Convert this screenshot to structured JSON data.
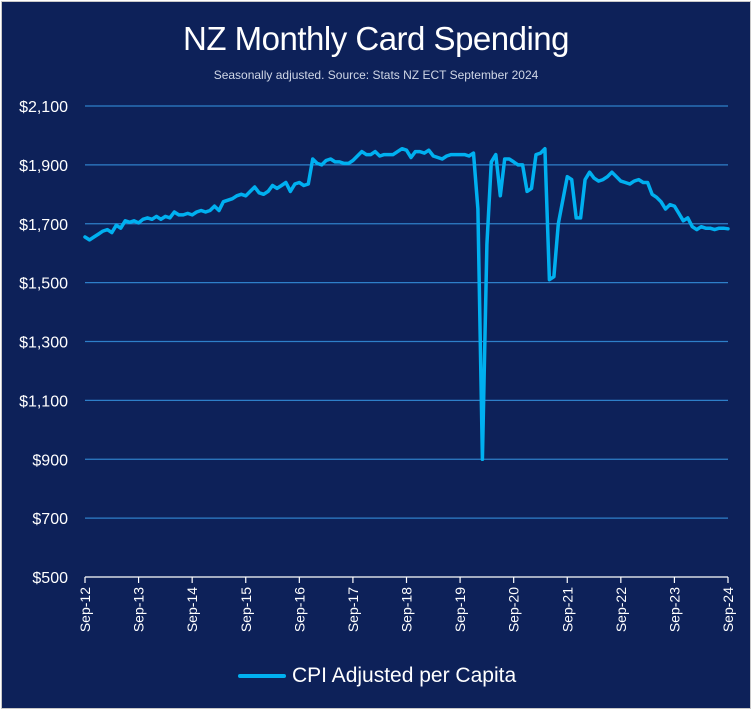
{
  "chart_data": {
    "type": "line",
    "title": "NZ Monthly Card Spending",
    "subtitle": "Seasonally adjusted. Source: Stats NZ ECT September 2024",
    "xlabel": "",
    "ylabel": "",
    "ylim": [
      500,
      2100
    ],
    "y_ticks": [
      "$500",
      "$700",
      "$900",
      "$1,100",
      "$1,300",
      "$1,500",
      "$1,700",
      "$1,900",
      "$2,100"
    ],
    "y_tick_values": [
      500,
      700,
      900,
      1100,
      1300,
      1500,
      1700,
      1900,
      2100
    ],
    "x_ticks": [
      "Sep-12",
      "Sep-13",
      "Sep-14",
      "Sep-15",
      "Sep-16",
      "Sep-17",
      "Sep-18",
      "Sep-19",
      "Sep-20",
      "Sep-21",
      "Sep-22",
      "Sep-23",
      "Sep-24"
    ],
    "grid": "horizontal",
    "legend_position": "bottom",
    "line_color": "#00b0f0",
    "series": [
      {
        "name": "CPI Adjusted per Capita",
        "x": [
          "Sep-12",
          "Oct-12",
          "Nov-12",
          "Dec-12",
          "Jan-13",
          "Feb-13",
          "Mar-13",
          "Apr-13",
          "May-13",
          "Jun-13",
          "Jul-13",
          "Aug-13",
          "Sep-13",
          "Oct-13",
          "Nov-13",
          "Dec-13",
          "Jan-14",
          "Feb-14",
          "Mar-14",
          "Apr-14",
          "May-14",
          "Jun-14",
          "Jul-14",
          "Aug-14",
          "Sep-14",
          "Oct-14",
          "Nov-14",
          "Dec-14",
          "Jan-15",
          "Feb-15",
          "Mar-15",
          "Apr-15",
          "May-15",
          "Jun-15",
          "Jul-15",
          "Aug-15",
          "Sep-15",
          "Oct-15",
          "Nov-15",
          "Dec-15",
          "Jan-16",
          "Feb-16",
          "Mar-16",
          "Apr-16",
          "May-16",
          "Jun-16",
          "Jul-16",
          "Aug-16",
          "Sep-16",
          "Oct-16",
          "Nov-16",
          "Dec-16",
          "Jan-17",
          "Feb-17",
          "Mar-17",
          "Apr-17",
          "May-17",
          "Jun-17",
          "Jul-17",
          "Aug-17",
          "Sep-17",
          "Oct-17",
          "Nov-17",
          "Dec-17",
          "Jan-18",
          "Feb-18",
          "Mar-18",
          "Apr-18",
          "May-18",
          "Jun-18",
          "Jul-18",
          "Aug-18",
          "Sep-18",
          "Oct-18",
          "Nov-18",
          "Dec-18",
          "Jan-19",
          "Feb-19",
          "Mar-19",
          "Apr-19",
          "May-19",
          "Jun-19",
          "Jul-19",
          "Aug-19",
          "Sep-19",
          "Oct-19",
          "Nov-19",
          "Dec-19",
          "Jan-20",
          "Feb-20",
          "Mar-20",
          "Apr-20",
          "May-20",
          "Jun-20",
          "Jul-20",
          "Aug-20",
          "Sep-20",
          "Oct-20",
          "Nov-20",
          "Dec-20",
          "Jan-21",
          "Feb-21",
          "Mar-21",
          "Apr-21",
          "May-21",
          "Jun-21",
          "Jul-21",
          "Aug-21",
          "Sep-21",
          "Oct-21",
          "Nov-21",
          "Dec-21",
          "Jan-22",
          "Feb-22",
          "Mar-22",
          "Apr-22",
          "May-22",
          "Jun-22",
          "Jul-22",
          "Aug-22",
          "Sep-22",
          "Oct-22",
          "Nov-22",
          "Dec-22",
          "Jan-23",
          "Feb-23",
          "Mar-23",
          "Apr-23",
          "May-23",
          "Jun-23",
          "Jul-23",
          "Aug-23",
          "Sep-23",
          "Oct-23",
          "Nov-23",
          "Dec-23",
          "Jan-24",
          "Feb-24",
          "Mar-24",
          "Apr-24",
          "May-24",
          "Jun-24",
          "Jul-24",
          "Aug-24",
          "Sep-24"
        ],
        "values": [
          1655,
          1645,
          1655,
          1665,
          1675,
          1680,
          1670,
          1695,
          1685,
          1710,
          1705,
          1710,
          1703,
          1715,
          1720,
          1715,
          1725,
          1715,
          1725,
          1720,
          1740,
          1730,
          1730,
          1735,
          1730,
          1740,
          1745,
          1740,
          1745,
          1760,
          1745,
          1775,
          1780,
          1785,
          1795,
          1800,
          1795,
          1810,
          1825,
          1805,
          1800,
          1810,
          1830,
          1820,
          1830,
          1840,
          1810,
          1835,
          1840,
          1830,
          1835,
          1920,
          1905,
          1900,
          1915,
          1920,
          1910,
          1910,
          1905,
          1905,
          1915,
          1930,
          1945,
          1935,
          1935,
          1945,
          1930,
          1935,
          1935,
          1935,
          1945,
          1955,
          1950,
          1925,
          1945,
          1945,
          1940,
          1950,
          1930,
          1925,
          1920,
          1930,
          1935,
          1935,
          1935,
          1935,
          1930,
          1940,
          1750,
          900,
          1630,
          1910,
          1935,
          1795,
          1920,
          1920,
          1910,
          1900,
          1900,
          1810,
          1820,
          1935,
          1940,
          1955,
          1510,
          1520,
          1700,
          1780,
          1860,
          1850,
          1720,
          1720,
          1850,
          1875,
          1855,
          1845,
          1850,
          1860,
          1875,
          1860,
          1845,
          1840,
          1835,
          1845,
          1850,
          1840,
          1840,
          1800,
          1790,
          1775,
          1750,
          1765,
          1760,
          1735,
          1710,
          1720,
          1690,
          1680,
          1690,
          1685,
          1685,
          1680,
          1685,
          1685,
          1683
        ]
      }
    ]
  }
}
